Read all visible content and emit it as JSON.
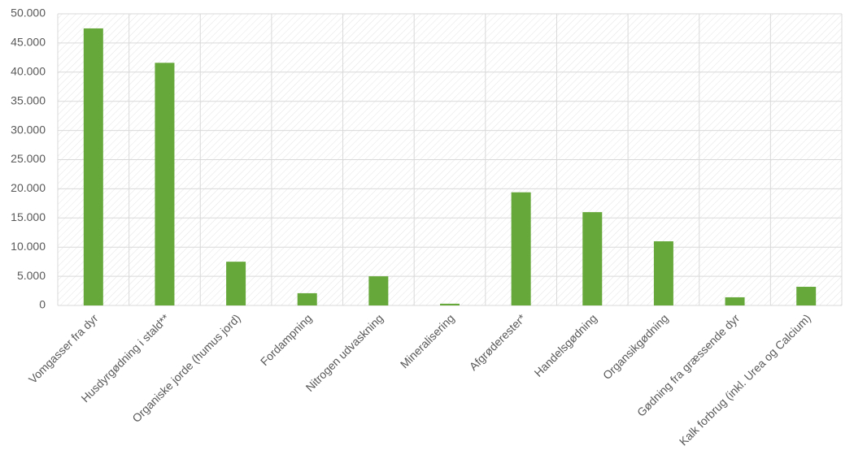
{
  "chart_data": {
    "type": "bar",
    "categories": [
      "Vomgasser fra dyr",
      "Husdyrgødning i stald**",
      "Organiske jorde (humus jord)",
      "Fordampning",
      "Nitrogen udvaskning",
      "Mineralisering",
      "Afgrøderester*",
      "Handelsgødning",
      "Organsikgødning",
      "Gødning fra græssende dyr",
      "Kalk forbrug (inkl. Urea og Calcium)"
    ],
    "values": [
      47500,
      41600,
      7500,
      2100,
      5000,
      300,
      19400,
      16000,
      11000,
      1400,
      3200
    ],
    "color": "#66a83a",
    "ylim": [
      0,
      50000
    ],
    "yticks": [
      0,
      {
        "value": 5000,
        "label": "5.000"
      },
      {
        "value": 10000,
        "label": "10.000"
      },
      {
        "value": 15000,
        "label": "15.000"
      },
      {
        "value": 20000,
        "label": "20.000"
      },
      {
        "value": 25000,
        "label": "25.000"
      },
      {
        "value": 30000,
        "label": "30.000"
      },
      {
        "value": 35000,
        "label": "35.000"
      },
      {
        "value": 40000,
        "label": "40.000"
      },
      {
        "value": 45000,
        "label": "45.000"
      },
      {
        "value": 50000,
        "label": "50.000"
      }
    ],
    "grid": true
  }
}
